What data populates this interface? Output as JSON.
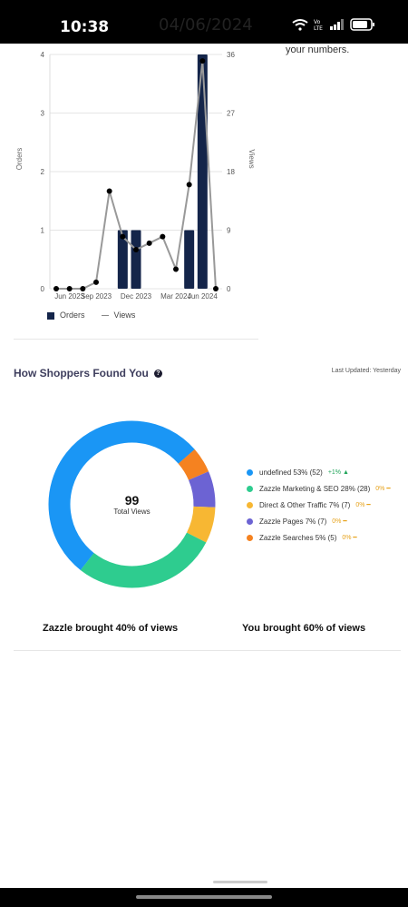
{
  "status_bar": {
    "time": "10:38",
    "date": "04/06/2024"
  },
  "top_note": "your numbers.",
  "orders_chart": {
    "legend": {
      "orders": "Orders",
      "views": "Views"
    },
    "y_left_label": "Orders",
    "y_right_label": "Views"
  },
  "shoppers": {
    "title": "How Shoppers Found You",
    "last_updated": "Last Updated: Yesterday",
    "total": "99",
    "total_label": "Total Views",
    "items": [
      {
        "label": "undefined 53% (52)",
        "change": "+1% ▲",
        "color": "#1a96f5",
        "dir": "up"
      },
      {
        "label": "Zazzle Marketing & SEO 28% (28)",
        "change": "0% ━",
        "color": "#2ecc8f",
        "dir": "flat"
      },
      {
        "label": "Direct & Other Traffic 7% (7)",
        "change": "0% ━",
        "color": "#f7b733",
        "dir": "flat"
      },
      {
        "label": "Zazzle Pages 7% (7)",
        "change": "0% ━",
        "color": "#6c63d3",
        "dir": "flat"
      },
      {
        "label": "Zazzle Searches 5% (5)",
        "change": "0% ━",
        "color": "#f58220",
        "dir": "flat"
      }
    ],
    "zazzle_brought": "Zazzle brought 40% of views",
    "you_brought": "You brought 60% of views"
  },
  "chart_data": [
    {
      "type": "bar",
      "x": [
        "",
        "Jun 2023",
        "",
        "Sep 2023",
        "",
        "",
        "Dec 2023",
        "",
        "",
        "Mar 2024",
        "",
        "Jun 2024",
        ""
      ],
      "xticks": [
        "Jun 2023",
        "Sep 2023",
        "Dec 2023",
        "Mar 2024",
        "Jun 2024"
      ],
      "ylim_left": [
        0,
        4
      ],
      "yticks_left": [
        0,
        1,
        2,
        3,
        4
      ],
      "ylim_right": [
        0,
        36
      ],
      "yticks_right": [
        0,
        9,
        18,
        27,
        36
      ],
      "series": [
        {
          "name": "Orders",
          "type": "bar",
          "axis": "left",
          "values": [
            0,
            0,
            0,
            0,
            0,
            1,
            1,
            0,
            0,
            0,
            1,
            4,
            0
          ]
        },
        {
          "name": "Views",
          "type": "line",
          "axis": "right",
          "values": [
            0,
            0,
            0,
            1,
            15,
            8,
            6,
            7,
            8,
            3,
            16,
            35,
            0
          ]
        }
      ],
      "xlabel": "",
      "ylabel": "Orders",
      "ylabel_right": "Views",
      "legend": "bottom-left",
      "grid": true,
      "colors": {
        "Orders": "#14254a",
        "Views": "#999999"
      }
    },
    {
      "type": "pie",
      "categories": [
        "undefined",
        "Zazzle Marketing & SEO",
        "Direct & Other Traffic",
        "Zazzle Pages",
        "Zazzle Searches"
      ],
      "values": [
        53,
        28,
        7,
        7,
        5
      ],
      "counts": [
        52,
        28,
        7,
        7,
        5
      ],
      "colors": [
        "#1a96f5",
        "#2ecc8f",
        "#f7b733",
        "#6c63d3",
        "#f58220"
      ],
      "center_text": "99",
      "center_label": "Total Views"
    }
  ]
}
